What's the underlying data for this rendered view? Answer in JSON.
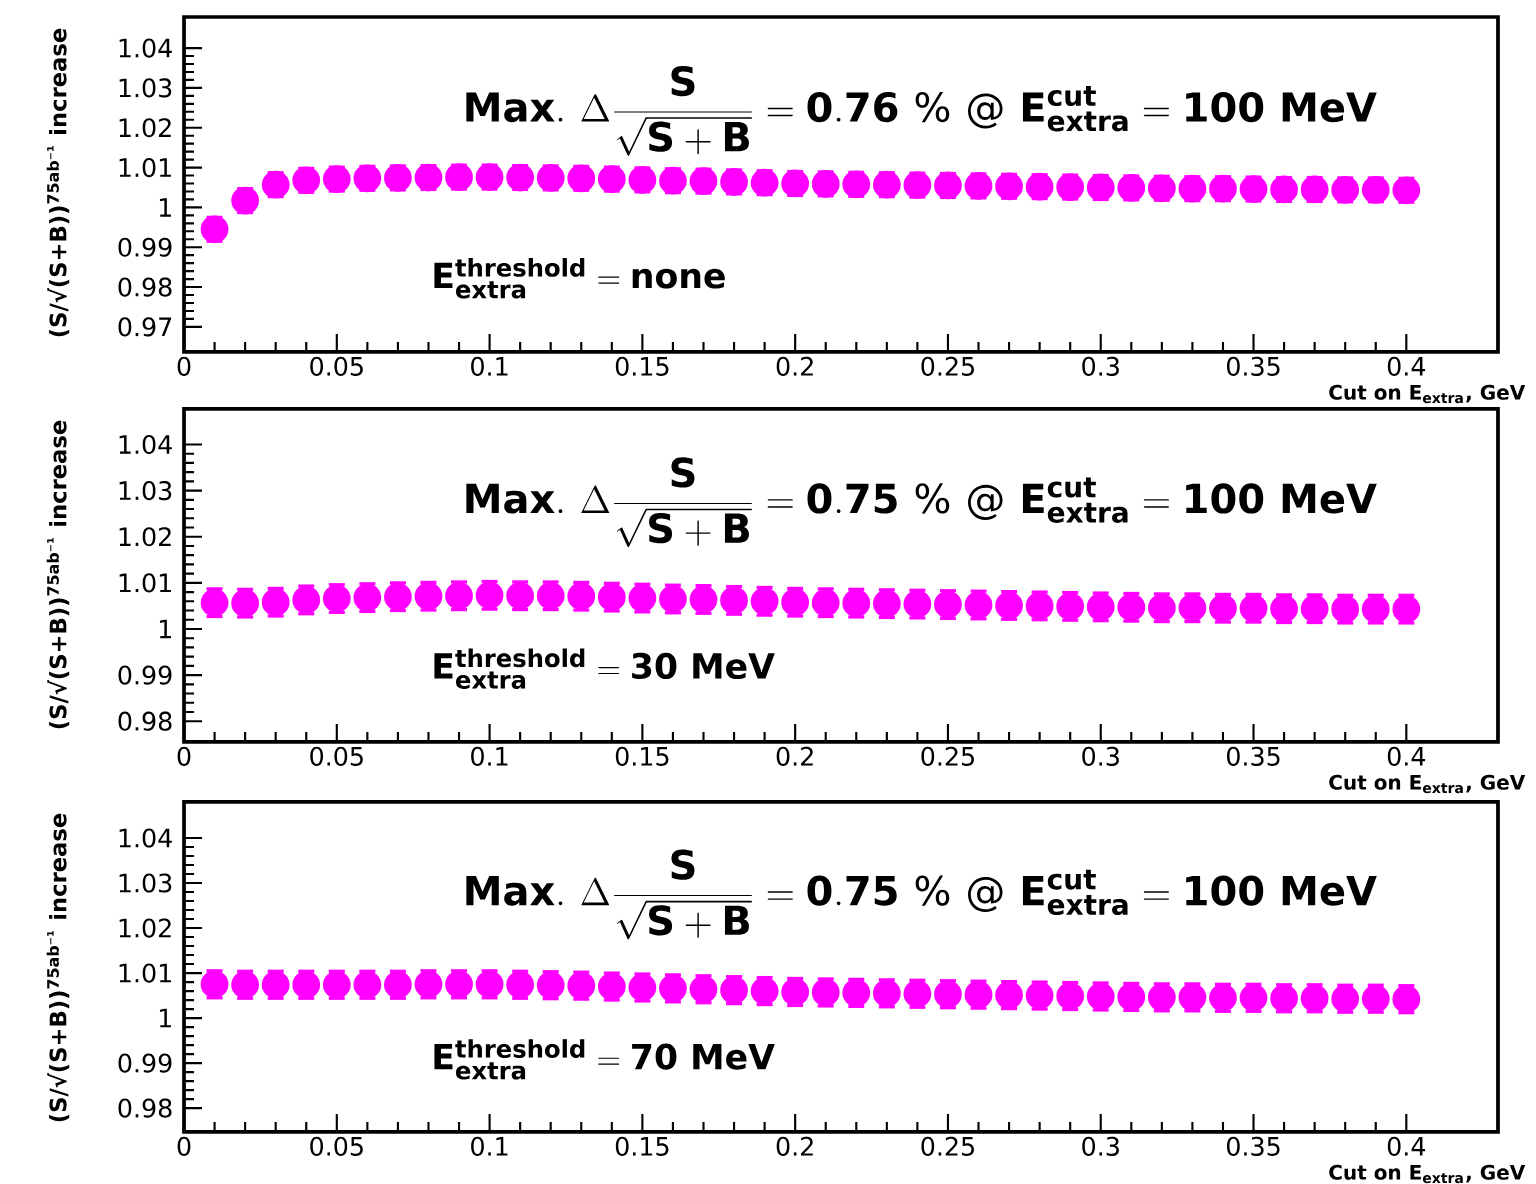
{
  "chart_data": [
    {
      "type": "scatter",
      "title": null,
      "ylabel": "(S/√(S+B))$^{75ab⁻¹}$ increase",
      "xlabel": "Cut on E$_{extra}$, GeV",
      "annotations": [
        "\\mathbf{Max.}\\ \\Delta\\frac{\\mathbf{S}}{\\sqrt{\\mathbf{S+B}}} = \\mathbf{0.76\\ \\%\\ @\\ E^{cut}_{extra} = 100\\ MeV}",
        "\\mathbf{E^{threshold}_{extra} = none}"
      ],
      "x": [
        0.01,
        0.02,
        0.03,
        0.04,
        0.05,
        0.06,
        0.07,
        0.08,
        0.09,
        0.1,
        0.11,
        0.12,
        0.13,
        0.14,
        0.15,
        0.16,
        0.17,
        0.18,
        0.19,
        0.2,
        0.21,
        0.22,
        0.23,
        0.24,
        0.25,
        0.26,
        0.27,
        0.28,
        0.29,
        0.3,
        0.31,
        0.32,
        0.33,
        0.34,
        0.35,
        0.36,
        0.37,
        0.38,
        0.39,
        0.4
      ],
      "values": [
        0.9945,
        1.0017,
        1.0057,
        1.0068,
        1.0071,
        1.0073,
        1.0074,
        1.0075,
        1.0076,
        1.0076,
        1.0075,
        1.0074,
        1.0073,
        1.0071,
        1.0069,
        1.0067,
        1.0066,
        1.0064,
        1.0062,
        1.006,
        1.0059,
        1.0058,
        1.0057,
        1.0056,
        1.0055,
        1.0054,
        1.0053,
        1.0052,
        1.0051,
        1.005,
        1.0049,
        1.0048,
        1.0047,
        1.0047,
        1.0046,
        1.0045,
        1.0045,
        1.0044,
        1.0044,
        1.0043
      ],
      "errors": [
        0.003,
        0.003,
        0.003,
        0.003,
        0.003,
        0.003,
        0.003,
        0.003,
        0.003,
        0.003,
        0.003,
        0.003,
        0.003,
        0.003,
        0.003,
        0.003,
        0.003,
        0.003,
        0.003,
        0.003,
        0.003,
        0.003,
        0.003,
        0.003,
        0.003,
        0.003,
        0.003,
        0.003,
        0.003,
        0.003,
        0.003,
        0.003,
        0.003,
        0.003,
        0.003,
        0.003,
        0.003,
        0.003,
        0.003,
        0.003
      ],
      "color": "#ff00ff",
      "marker": "circle",
      "xlim": [
        0,
        0.43
      ],
      "ylim": [
        0.9637,
        1.0478
      ],
      "xticks": [
        0,
        0.05,
        0.1,
        0.15,
        0.2,
        0.25,
        0.3,
        0.35,
        0.4
      ],
      "yticks": [
        0.97,
        0.98,
        0.99,
        1,
        1.01,
        1.02,
        1.03,
        1.04
      ],
      "grid": false
    },
    {
      "type": "scatter",
      "title": null,
      "ylabel": "(S/√(S+B))$^{75ab⁻¹}$ increase",
      "xlabel": "Cut on E$_{extra}$, GeV",
      "annotations": [
        "\\mathbf{Max.}\\ \\Delta\\frac{\\mathbf{S}}{\\sqrt{\\mathbf{S+B}}} = \\mathbf{0.75\\ \\%\\ @\\ E^{cut}_{extra} = 100\\ MeV}",
        "\\mathbf{E^{threshold}_{extra} = 30\\ MeV}"
      ],
      "x": [
        0.01,
        0.02,
        0.03,
        0.04,
        0.05,
        0.06,
        0.07,
        0.08,
        0.09,
        0.1,
        0.11,
        0.12,
        0.13,
        0.14,
        0.15,
        0.16,
        0.17,
        0.18,
        0.19,
        0.2,
        0.21,
        0.22,
        0.23,
        0.24,
        0.25,
        0.26,
        0.27,
        0.28,
        0.29,
        0.3,
        0.31,
        0.32,
        0.33,
        0.34,
        0.35,
        0.36,
        0.37,
        0.38,
        0.39,
        0.4
      ],
      "values": [
        1.0057,
        1.0056,
        1.0058,
        1.0063,
        1.0066,
        1.0068,
        1.007,
        1.0071,
        1.0072,
        1.0073,
        1.0072,
        1.0072,
        1.0071,
        1.0069,
        1.0067,
        1.0065,
        1.0064,
        1.0062,
        1.006,
        1.0058,
        1.0057,
        1.0056,
        1.0055,
        1.0054,
        1.0053,
        1.0052,
        1.0051,
        1.005,
        1.0049,
        1.0048,
        1.0047,
        1.0046,
        1.0046,
        1.0045,
        1.0045,
        1.0044,
        1.0044,
        1.0043,
        1.0043,
        1.0043
      ],
      "errors": [
        0.003,
        0.003,
        0.003,
        0.003,
        0.003,
        0.003,
        0.003,
        0.003,
        0.003,
        0.003,
        0.003,
        0.003,
        0.003,
        0.003,
        0.003,
        0.003,
        0.003,
        0.003,
        0.003,
        0.003,
        0.003,
        0.003,
        0.003,
        0.003,
        0.003,
        0.003,
        0.003,
        0.003,
        0.003,
        0.003,
        0.003,
        0.003,
        0.003,
        0.003,
        0.003,
        0.003,
        0.003,
        0.003,
        0.003,
        0.003
      ],
      "color": "#ff00ff",
      "marker": "circle",
      "xlim": [
        0,
        0.43
      ],
      "ylim": [
        0.9755,
        1.0477
      ],
      "xticks": [
        0,
        0.05,
        0.1,
        0.15,
        0.2,
        0.25,
        0.3,
        0.35,
        0.4
      ],
      "yticks": [
        0.98,
        0.99,
        1,
        1.01,
        1.02,
        1.03,
        1.04
      ],
      "grid": false
    },
    {
      "type": "scatter",
      "title": null,
      "ylabel": "(S/√(S+B))$^{75ab⁻¹}$ increase",
      "xlabel": "Cut on E$_{extra}$, GeV",
      "annotations": [
        "\\mathbf{Max.}\\ \\Delta\\frac{\\mathbf{S}}{\\sqrt{\\mathbf{S+B}}} = \\mathbf{0.75\\ \\%\\ @\\ E^{cut}_{extra} = 100\\ MeV}",
        "\\mathbf{E^{threshold}_{extra} = 70\\ MeV}"
      ],
      "x": [
        0.01,
        0.02,
        0.03,
        0.04,
        0.05,
        0.06,
        0.07,
        0.08,
        0.09,
        0.1,
        0.11,
        0.12,
        0.13,
        0.14,
        0.15,
        0.16,
        0.17,
        0.18,
        0.19,
        0.2,
        0.21,
        0.22,
        0.23,
        0.24,
        0.25,
        0.26,
        0.27,
        0.28,
        0.29,
        0.3,
        0.31,
        0.32,
        0.33,
        0.34,
        0.35,
        0.36,
        0.37,
        0.38,
        0.39,
        0.4
      ],
      "values": [
        1.0075,
        1.0074,
        1.0074,
        1.0074,
        1.0074,
        1.0074,
        1.0074,
        1.0075,
        1.0075,
        1.0075,
        1.0074,
        1.0073,
        1.0072,
        1.007,
        1.0068,
        1.0066,
        1.0064,
        1.0062,
        1.006,
        1.0058,
        1.0057,
        1.0056,
        1.0055,
        1.0054,
        1.0053,
        1.0052,
        1.0051,
        1.005,
        1.0049,
        1.0048,
        1.0047,
        1.0046,
        1.0046,
        1.0045,
        1.0045,
        1.0044,
        1.0044,
        1.0043,
        1.0043,
        1.0042
      ],
      "errors": [
        0.003,
        0.003,
        0.003,
        0.003,
        0.003,
        0.003,
        0.003,
        0.003,
        0.003,
        0.003,
        0.003,
        0.003,
        0.003,
        0.003,
        0.003,
        0.003,
        0.003,
        0.003,
        0.003,
        0.003,
        0.003,
        0.003,
        0.003,
        0.003,
        0.003,
        0.003,
        0.003,
        0.003,
        0.003,
        0.003,
        0.003,
        0.003,
        0.003,
        0.003,
        0.003,
        0.003,
        0.003,
        0.003,
        0.003,
        0.003
      ],
      "color": "#ff00ff",
      "marker": "circle",
      "xlim": [
        0,
        0.43
      ],
      "ylim": [
        0.9747,
        1.048
      ],
      "xticks": [
        0,
        0.05,
        0.1,
        0.15,
        0.2,
        0.25,
        0.3,
        0.35,
        0.4
      ],
      "yticks": [
        0.98,
        0.99,
        1,
        1.01,
        1.02,
        1.03,
        1.04
      ],
      "grid": false
    }
  ]
}
